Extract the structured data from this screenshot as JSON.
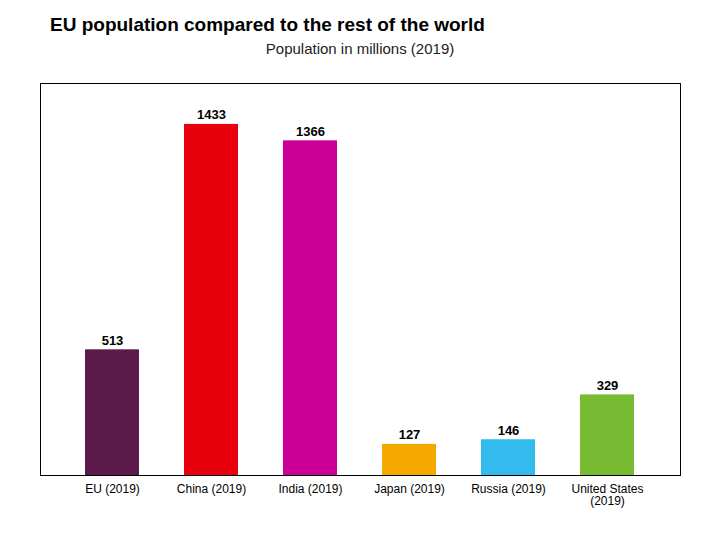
{
  "chart_data": {
    "type": "bar",
    "title": "EU population compared to the rest of the world",
    "subtitle": "Population in millions (2019)",
    "categories": [
      "EU (2019)",
      "China (2019)",
      "India (2019)",
      "Japan (2019)",
      "Russia (2019)",
      "United States\n(2019)"
    ],
    "values": [
      513,
      1433,
      1366,
      127,
      146,
      329
    ],
    "colors": [
      "#5c1a4a",
      "#e8000d",
      "#cc0099",
      "#f5a800",
      "#33bbee",
      "#77bb33"
    ],
    "ylim": [
      0,
      1600
    ],
    "grid": false,
    "data_labels": true,
    "tick_labels": "x"
  }
}
